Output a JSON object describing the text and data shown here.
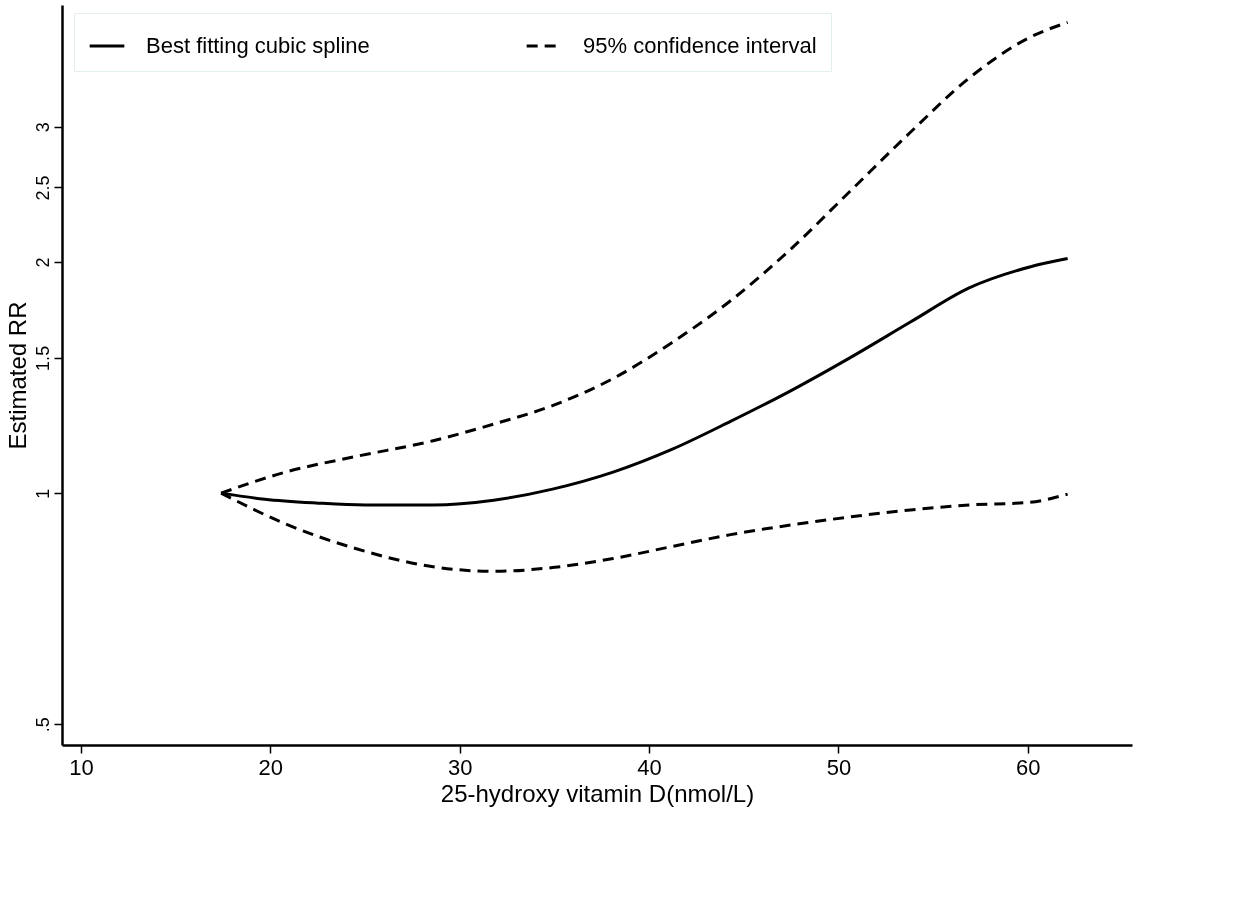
{
  "chart_data": {
    "type": "line",
    "xlabel": "25-hydroxy vitamin D(nmol/L)",
    "ylabel": "Estimated RR",
    "xlim": [
      9,
      65.5
    ],
    "xticks": [
      10,
      20,
      30,
      40,
      50,
      60
    ],
    "ylim": [
      0.47,
      4.32
    ],
    "yticks": [
      {
        "value": 0.5,
        "label": ".5"
      },
      1,
      1.5,
      2,
      2.5,
      3
    ],
    "log": "y",
    "grid": false,
    "legend": "top",
    "marker": "none",
    "series": [
      {
        "name": "Best fitting cubic spline",
        "color": "#000000",
        "line_style": "solid",
        "x": [
          17.4,
          19.7,
          22.4,
          25.0,
          28.6,
          31.8,
          34.9,
          38.1,
          41.2,
          44.3,
          47.5,
          50.6,
          53.8,
          56.9,
          60.1,
          62.1
        ],
        "values": [
          1.0,
          0.982,
          0.971,
          0.965,
          0.965,
          0.979,
          1.012,
          1.065,
          1.14,
          1.24,
          1.36,
          1.5,
          1.67,
          1.85,
          1.97,
          2.02
        ]
      },
      {
        "name": "95% confidence interval",
        "color": "#000000",
        "line_style": "dashed",
        "x": [
          17.4,
          20.8,
          24.5,
          28.6,
          31.8,
          34.9,
          38.1,
          41.2,
          44.3,
          47.5,
          50.6,
          53.8,
          56.9,
          60.1,
          62.1
        ],
        "values": [
          1.0,
          1.065,
          1.116,
          1.17,
          1.23,
          1.3,
          1.41,
          1.57,
          1.78,
          2.08,
          2.47,
          2.95,
          3.47,
          3.92,
          4.1
        ]
      },
      {
        "color": "#000000",
        "line_style": "dashed",
        "x": [
          17.4,
          20.8,
          24.5,
          28.6,
          31.8,
          34.9,
          38.1,
          41.2,
          44.3,
          47.5,
          50.6,
          53.8,
          56.9,
          60.1,
          62.1
        ],
        "values": [
          1.0,
          0.912,
          0.847,
          0.802,
          0.791,
          0.8,
          0.822,
          0.852,
          0.883,
          0.909,
          0.931,
          0.951,
          0.965,
          0.973,
          0.997
        ]
      }
    ]
  }
}
